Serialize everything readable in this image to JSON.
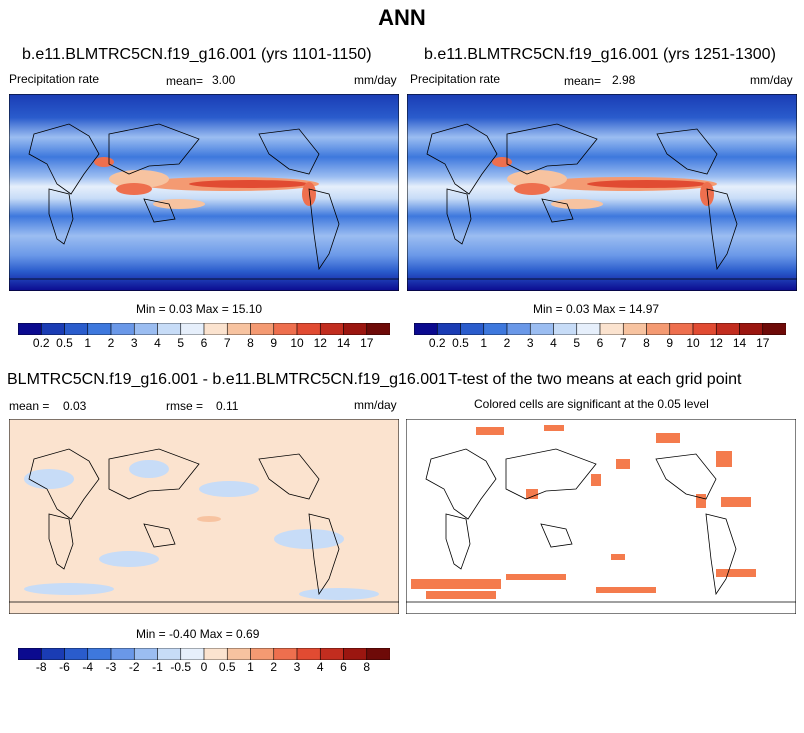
{
  "figure_title": "ANN",
  "colors": {
    "precip_scale": [
      "#0b0a8f",
      "#1a3cb4",
      "#2a5ccc",
      "#3e78dd",
      "#6a98e8",
      "#9bbdf1",
      "#c7dcf7",
      "#e6effb",
      "#fbe3cf",
      "#f7c3a0",
      "#f49a72",
      "#ee6f4e",
      "#e14b32",
      "#c22d1f",
      "#9b1610",
      "#6e0a08"
    ],
    "diff_scale": [
      "#0b0a8f",
      "#1a3cb4",
      "#2a5ccc",
      "#3e78dd",
      "#6a98e8",
      "#9bbdf1",
      "#c7dcf7",
      "#e6effb",
      "#fbe3cf",
      "#f7c3a0",
      "#f49a72",
      "#ee6f4e",
      "#e14b32",
      "#c22d1f",
      "#9b1610",
      "#6e0a08"
    ],
    "significant": "#f47b4d",
    "land_outline": "#000000"
  },
  "panels": {
    "p1": {
      "title": "b.e11.BLMTRC5CN.f19_g16.001 (yrs 1101-1150)",
      "left_label": "Precipitation rate",
      "mean_label": "mean=",
      "mean_value": "3.00",
      "units": "mm/day",
      "minmax": "Min =   0.03 Max =  15.10",
      "icon": "precipitation-map"
    },
    "p2": {
      "title": "b.e11.BLMTRC5CN.f19_g16.001 (yrs 1251-1300)",
      "left_label": "Precipitation rate",
      "mean_label": "mean=",
      "mean_value": "2.98",
      "units": "mm/day",
      "minmax": "Min =   0.03 Max =  14.97",
      "icon": "precipitation-map"
    },
    "p3": {
      "title": "BLMTRC5CN.f19_g16.001 - b.e11.BLMTRC5CN.f19_g16.001",
      "mean_label": "mean =",
      "mean_value": "0.03",
      "rmse_label": "rmse =",
      "rmse_value": "0.11",
      "units": "mm/day",
      "minmax": "Min =  -0.40 Max =    0.69",
      "icon": "difference-map"
    },
    "p4": {
      "title": "T-test of the two means at each grid point",
      "subtitle": "Colored cells are significant at the 0.05 level",
      "icon": "significance-map"
    }
  },
  "colorbars": {
    "precip_ticks": [
      "0.2",
      "0.5",
      "1",
      "2",
      "3",
      "4",
      "5",
      "6",
      "7",
      "8",
      "9",
      "10",
      "12",
      "14",
      "17"
    ],
    "diff_ticks": [
      "-8",
      "-6",
      "-4",
      "-3",
      "-2",
      "-1",
      "-0.5",
      "0",
      "0.5",
      "1",
      "2",
      "3",
      "4",
      "6",
      "8"
    ]
  }
}
